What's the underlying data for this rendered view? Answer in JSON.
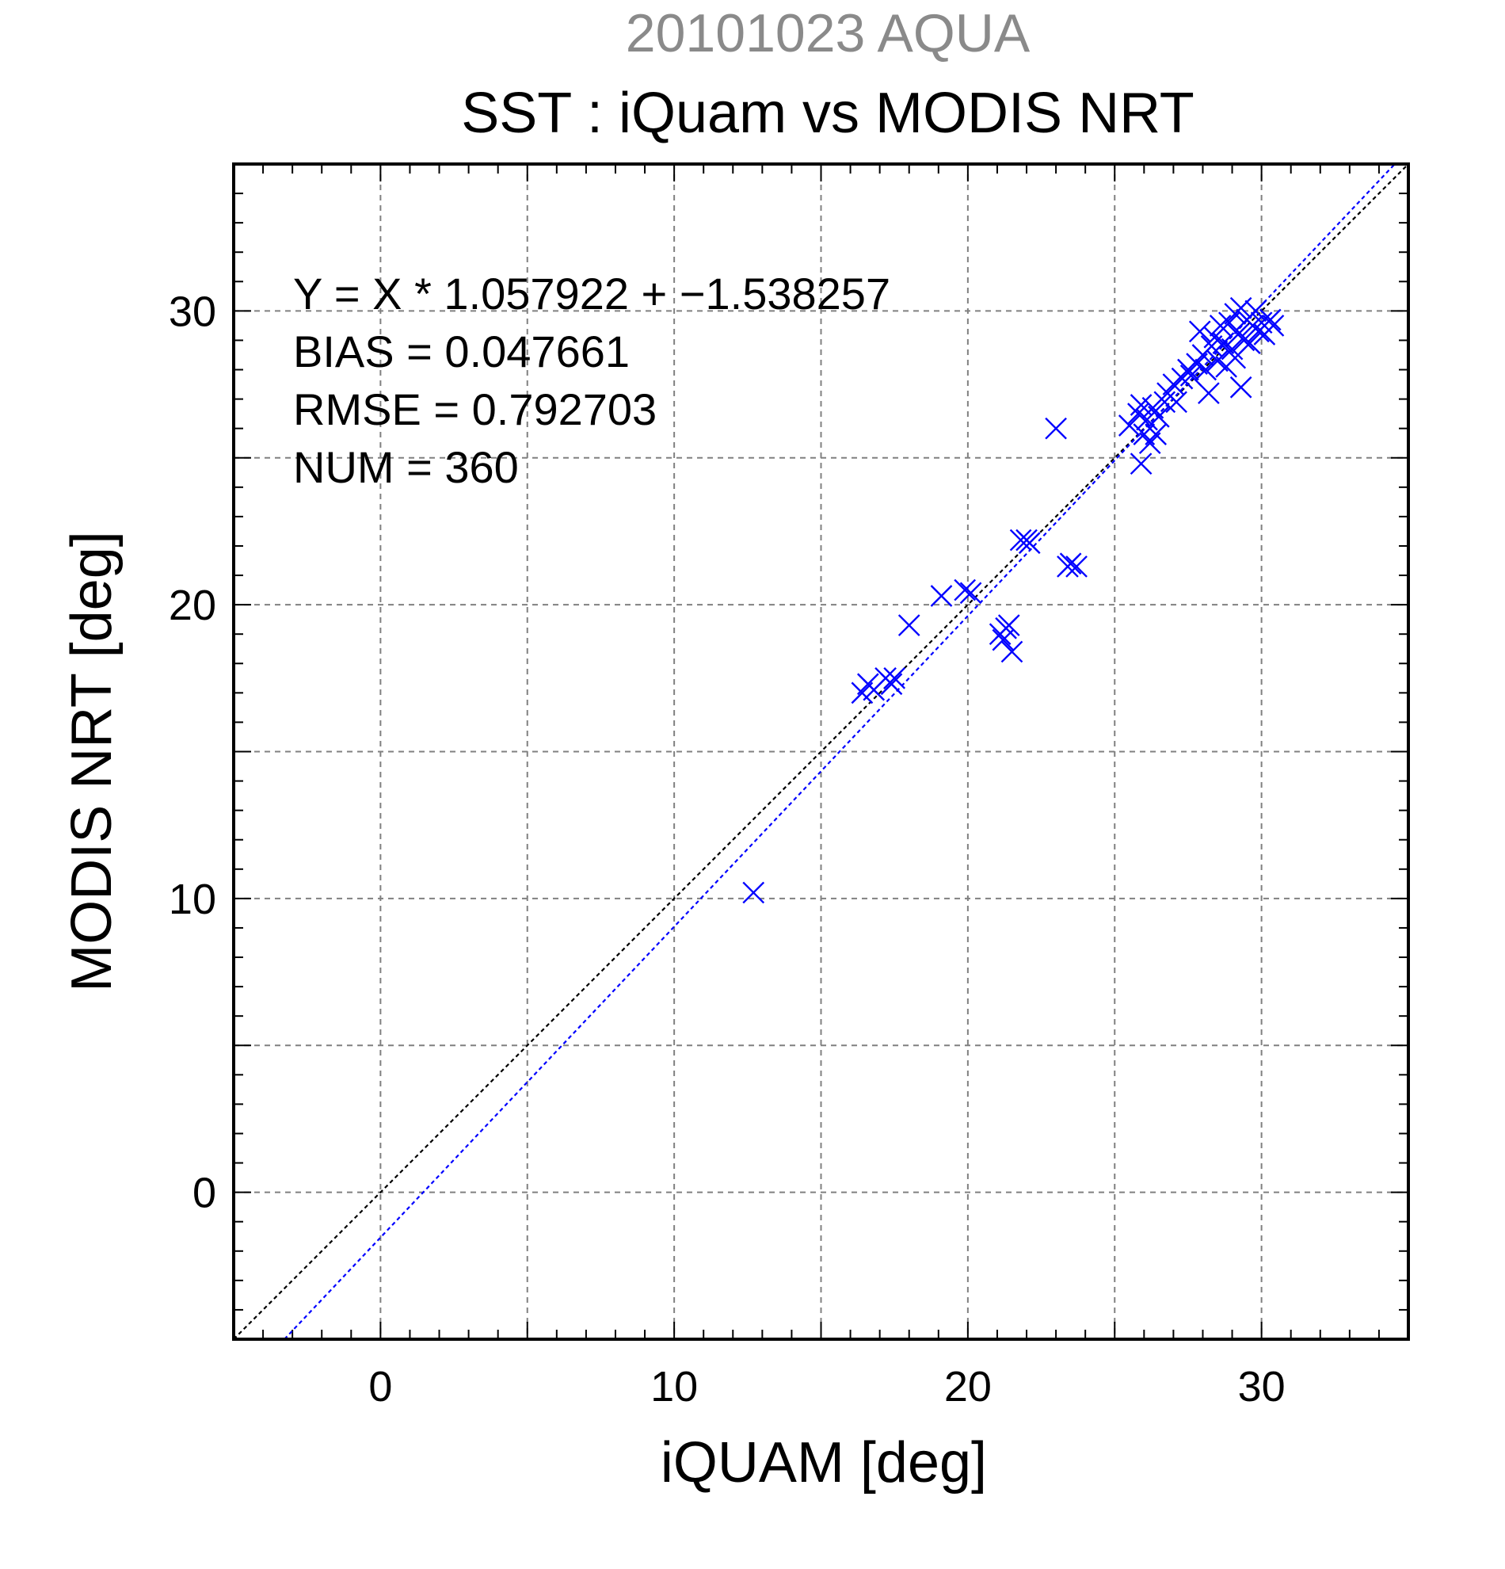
{
  "chart_data": {
    "type": "scatter",
    "date_title": "20101023 AQUA",
    "title": "SST : iQuam vs MODIS NRT",
    "xlabel": "iQUAM [deg]",
    "ylabel": "MODIS NRT [deg]",
    "xlim": [
      -5,
      35
    ],
    "ylim": [
      -5,
      35
    ],
    "x_ticks": [
      0,
      10,
      20,
      30
    ],
    "y_ticks": [
      0,
      10,
      20,
      30
    ],
    "x_tick_labels": [
      "0",
      "10",
      "20",
      "30"
    ],
    "y_tick_labels": [
      "0",
      "10",
      "20",
      "30"
    ],
    "grid": true,
    "grid_step": 5,
    "minor_tick_step": 1,
    "stats": {
      "equation": "Y = X * 1.057922 + −1.538257",
      "bias": "BIAS = 0.047661",
      "rmse": "RMSE = 0.792703",
      "num": "NUM = 360"
    },
    "reference_lines": [
      {
        "kind": "identity",
        "slope": 1,
        "intercept": 0,
        "color": "#000000"
      },
      {
        "kind": "fit",
        "slope": 1.057922,
        "intercept": -1.538257,
        "color": "#0000ff"
      }
    ],
    "marker": "x",
    "marker_color": "#0000ff",
    "series": [
      {
        "color": "#0000ff",
        "points": [
          [
            12.7,
            10.2
          ],
          [
            16.4,
            17.0
          ],
          [
            16.6,
            17.3
          ],
          [
            16.8,
            17.1
          ],
          [
            17.2,
            17.5
          ],
          [
            17.4,
            17.3
          ],
          [
            17.5,
            17.5
          ],
          [
            18.0,
            19.3
          ],
          [
            19.1,
            20.3
          ],
          [
            19.9,
            20.5
          ],
          [
            20.1,
            20.4
          ],
          [
            21.1,
            19.0
          ],
          [
            21.2,
            18.8
          ],
          [
            21.3,
            19.2
          ],
          [
            21.4,
            19.3
          ],
          [
            21.5,
            18.4
          ],
          [
            21.8,
            22.2
          ],
          [
            22.0,
            22.2
          ],
          [
            22.1,
            22.1
          ],
          [
            23.0,
            26.0
          ],
          [
            23.4,
            21.3
          ],
          [
            23.5,
            21.4
          ],
          [
            23.7,
            21.3
          ],
          [
            25.5,
            26.1
          ],
          [
            25.8,
            26.5
          ],
          [
            25.9,
            26.8
          ],
          [
            25.9,
            24.8
          ],
          [
            26.0,
            25.8
          ],
          [
            26.1,
            26.3
          ],
          [
            26.2,
            25.5
          ],
          [
            26.3,
            26.7
          ],
          [
            26.4,
            25.8
          ],
          [
            26.5,
            26.4
          ],
          [
            26.7,
            26.9
          ],
          [
            26.8,
            27.2
          ],
          [
            27.0,
            27.5
          ],
          [
            27.1,
            26.9
          ],
          [
            27.3,
            27.7
          ],
          [
            27.5,
            28.0
          ],
          [
            27.6,
            27.8
          ],
          [
            27.8,
            28.2
          ],
          [
            27.9,
            29.3
          ],
          [
            28.0,
            28.5
          ],
          [
            28.1,
            28.0
          ],
          [
            28.2,
            27.2
          ],
          [
            28.3,
            28.8
          ],
          [
            28.4,
            29.1
          ],
          [
            28.5,
            28.3
          ],
          [
            28.6,
            29.5
          ],
          [
            28.7,
            28.9
          ],
          [
            28.8,
            28.1
          ],
          [
            28.9,
            29.6
          ],
          [
            29.0,
            28.7
          ],
          [
            29.1,
            29.9
          ],
          [
            29.1,
            28.4
          ],
          [
            29.2,
            29.2
          ],
          [
            29.3,
            27.4
          ],
          [
            29.3,
            30.1
          ],
          [
            29.4,
            29.0
          ],
          [
            29.5,
            29.7
          ],
          [
            29.6,
            28.9
          ],
          [
            29.7,
            29.5
          ],
          [
            29.8,
            30.0
          ],
          [
            29.9,
            29.3
          ],
          [
            30.0,
            29.6
          ],
          [
            30.1,
            29.2
          ],
          [
            30.3,
            29.7
          ],
          [
            30.4,
            29.5
          ]
        ]
      }
    ]
  }
}
